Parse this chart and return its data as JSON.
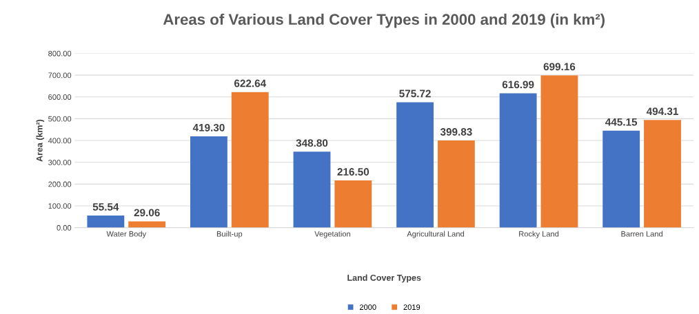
{
  "chart_data": {
    "type": "bar",
    "title": "Areas of Various Land Cover Types in 2000 and 2019 (in km²)",
    "xlabel": "Land Cover Types",
    "ylabel": "Area (km²)",
    "categories": [
      "Water Body",
      "Built-up",
      "Vegetation",
      "Agricultural Land",
      "Rocky Land",
      "Barren Land"
    ],
    "series": [
      {
        "name": "2000",
        "color": "#4472c4",
        "values": [
          55.54,
          419.3,
          348.8,
          575.72,
          616.99,
          445.15
        ],
        "value_labels": [
          "55.54",
          "419.30",
          "348.80",
          "575.72",
          "616.99",
          "445.15"
        ]
      },
      {
        "name": "2019",
        "color": "#ed7d31",
        "values": [
          29.06,
          622.64,
          216.5,
          399.83,
          699.16,
          494.31
        ],
        "value_labels": [
          "29.06",
          "622.64",
          "216.50",
          "399.83",
          "699.16",
          "494.31"
        ]
      }
    ],
    "ylim": [
      0,
      800
    ],
    "yticks": [
      {
        "value": 0,
        "label": "0.00"
      },
      {
        "value": 100,
        "label": "100.00"
      },
      {
        "value": 200,
        "label": "200.00"
      },
      {
        "value": 300,
        "label": "300.00"
      },
      {
        "value": 400,
        "label": "400.00"
      },
      {
        "value": 500,
        "label": "500.00"
      },
      {
        "value": 600,
        "label": "600.00"
      },
      {
        "value": 700,
        "label": "700.00"
      },
      {
        "value": 800,
        "label": "800.00"
      }
    ],
    "grid": "y",
    "legend": "bottom"
  }
}
